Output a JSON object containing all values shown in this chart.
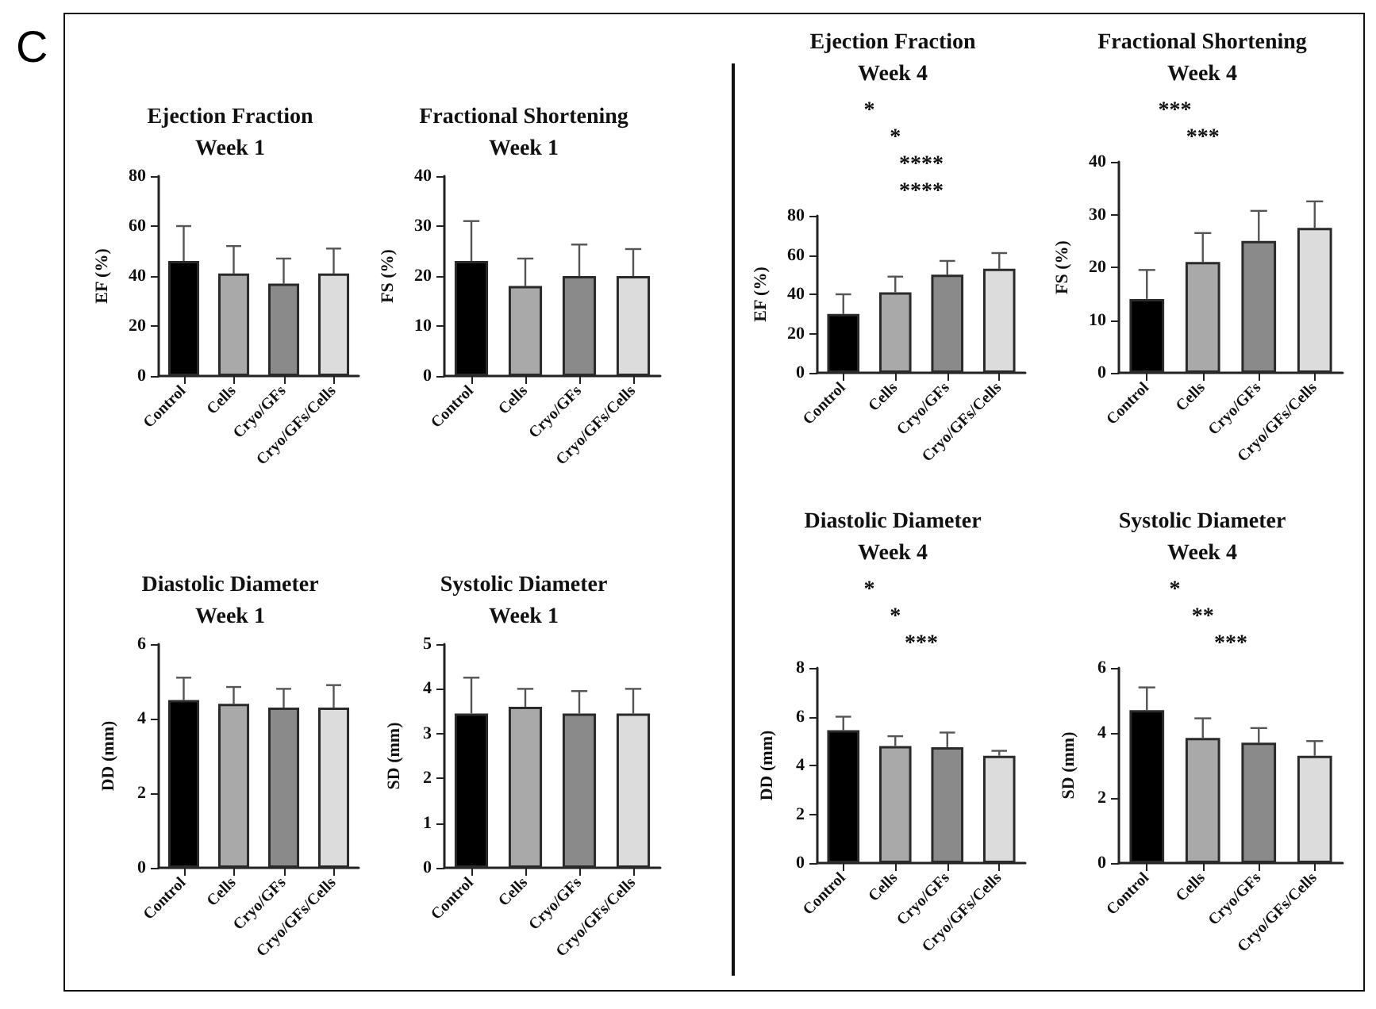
{
  "chart_data": [
    {
      "type": "bar",
      "title": "Ejection Fraction\nWeek 1",
      "ylabel": "EF (%)",
      "categories": [
        "Control",
        "Cells",
        "Cryo/GFs",
        "Cryo/GFs/Cells"
      ],
      "values": [
        46,
        41,
        37,
        41
      ],
      "errors": [
        [
          46,
          60
        ],
        [
          41,
          52
        ],
        [
          37,
          47
        ],
        [
          41,
          51
        ]
      ],
      "colors": [
        "#000000",
        "#a9a9a9",
        "#8a8a8a",
        "#dcdcdc"
      ],
      "ylim": [
        0,
        80
      ],
      "yticks": [
        0,
        20,
        40,
        60,
        80
      ],
      "annotations": [
        "C"
      ]
    },
    {
      "type": "bar",
      "title": "Fractional Shortening\nWeek 1",
      "ylabel": "FS (%)",
      "categories": [
        "Control",
        "Cells",
        "Cryo/GFs",
        "Cryo/GFs/Cells"
      ],
      "values": [
        23,
        18,
        20,
        20
      ],
      "errors": [
        [
          23,
          31
        ],
        [
          18,
          23.5
        ],
        [
          20,
          26.3
        ],
        [
          20,
          25.4
        ]
      ],
      "colors": [
        "#000000",
        "#a9a9a9",
        "#8a8a8a",
        "#dcdcdc"
      ],
      "ylim": [
        0,
        40
      ],
      "yticks": [
        0,
        10,
        20,
        30,
        40
      ]
    },
    {
      "type": "bar",
      "title": "Ejection Fraction\nWeek 4",
      "ylabel": "EF (%)",
      "categories": [
        "Control",
        "Cells",
        "Cryo/GFs",
        "Cryo/GFs/Cells"
      ],
      "values": [
        30,
        41,
        50,
        53
      ],
      "errors": [
        [
          30,
          40
        ],
        [
          41,
          49
        ],
        [
          50,
          57
        ],
        [
          53,
          61
        ]
      ],
      "colors": [
        "#000000",
        "#a9a9a9",
        "#8a8a8a",
        "#dcdcdc"
      ],
      "ylim": [
        0,
        80
      ],
      "yticks": [
        0,
        20,
        40,
        60,
        80
      ],
      "annotations": [
        "*",
        "*",
        "****",
        "****"
      ]
    },
    {
      "type": "bar",
      "title": "Fractional Shortening\nWeek 4",
      "ylabel": "FS (%)",
      "categories": [
        "Control",
        "Cells",
        "Cryo/GFs",
        "Cryo/GFs/Cells"
      ],
      "values": [
        14,
        21,
        25,
        27.5
      ],
      "errors": [
        [
          14,
          19.5
        ],
        [
          21,
          26.5
        ],
        [
          25,
          30.7
        ],
        [
          27.5,
          32.5
        ]
      ],
      "colors": [
        "#000000",
        "#a9a9a9",
        "#8a8a8a",
        "#dcdcdc"
      ],
      "ylim": [
        0,
        40
      ],
      "yticks": [
        0,
        10,
        20,
        30,
        40
      ],
      "annotations": [
        "***",
        "***"
      ]
    },
    {
      "type": "bar",
      "title": "Diastolic Diameter\nWeek 1",
      "ylabel": "DD (mm)",
      "categories": [
        "Control",
        "Cells",
        "Cryo/GFs",
        "Cryo/GFs/Cells"
      ],
      "values": [
        4.5,
        4.4,
        4.3,
        4.3
      ],
      "errors": [
        [
          4.5,
          5.1
        ],
        [
          4.4,
          4.85
        ],
        [
          4.3,
          4.8
        ],
        [
          4.3,
          4.9
        ]
      ],
      "colors": [
        "#000000",
        "#a9a9a9",
        "#8a8a8a",
        "#dcdcdc"
      ],
      "ylim": [
        0,
        6
      ],
      "yticks": [
        0,
        2,
        4,
        6
      ]
    },
    {
      "type": "bar",
      "title": "Systolic Diameter\nWeek 1",
      "ylabel": "SD (mm)",
      "categories": [
        "Control",
        "Cells",
        "Cryo/GFs",
        "Cryo/GFs/Cells"
      ],
      "values": [
        3.45,
        3.6,
        3.45,
        3.45
      ],
      "errors": [
        [
          3.45,
          4.25
        ],
        [
          3.6,
          4
        ],
        [
          3.45,
          3.95
        ],
        [
          3.45,
          4
        ]
      ],
      "colors": [
        "#000000",
        "#a9a9a9",
        "#8a8a8a",
        "#dcdcdc"
      ],
      "ylim": [
        0,
        5
      ],
      "yticks": [
        0,
        1,
        2,
        3,
        4,
        5
      ]
    },
    {
      "type": "bar",
      "title": "Diastolic Diameter\nWeek 4",
      "ylabel": "DD (mm)",
      "categories": [
        "Control",
        "Cells",
        "Cryo/GFs",
        "Cryo/GFs/Cells"
      ],
      "values": [
        5.45,
        4.8,
        4.75,
        4.4
      ],
      "errors": [
        [
          5.45,
          6
        ],
        [
          4.8,
          5.2
        ],
        [
          4.75,
          5.35
        ],
        [
          4.4,
          4.6
        ]
      ],
      "colors": [
        "#000000",
        "#a9a9a9",
        "#8a8a8a",
        "#dcdcdc"
      ],
      "ylim": [
        0,
        8
      ],
      "yticks": [
        0,
        2,
        4,
        6,
        8
      ],
      "annotations": [
        "*",
        "*",
        "***"
      ]
    },
    {
      "type": "bar",
      "title": "Systolic Diameter\nWeek 4",
      "ylabel": "SD (mm)",
      "categories": [
        "Control",
        "Cells",
        "Cryo/GFs",
        "Cryo/GFs/Cells"
      ],
      "values": [
        4.7,
        3.85,
        3.7,
        3.3
      ],
      "errors": [
        [
          4.7,
          5.4
        ],
        [
          3.85,
          4.45
        ],
        [
          3.7,
          4.15
        ],
        [
          3.3,
          3.75
        ]
      ],
      "colors": [
        "#000000",
        "#a9a9a9",
        "#8a8a8a",
        "#dcdcdc"
      ],
      "ylim": [
        0,
        6
      ],
      "yticks": [
        0,
        2,
        4,
        6
      ],
      "annotations": [
        "*",
        "**",
        "***"
      ]
    }
  ]
}
